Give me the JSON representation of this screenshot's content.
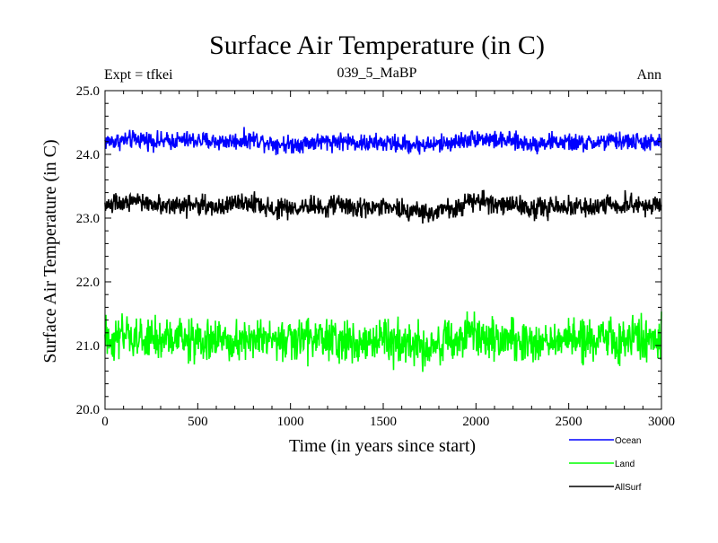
{
  "chart_data": {
    "type": "line",
    "title": "Surface Air Temperature (in C)",
    "subtitle": "039_5_MaBP",
    "left_note": "Expt = tfkei",
    "right_note": "Ann",
    "xlabel": "Time (in years since start)",
    "ylabel": "Surface Air Temperature (in C)",
    "xlim": [
      0,
      3000
    ],
    "ylim": [
      20.0,
      25.0
    ],
    "x_ticks": [
      0,
      500,
      1000,
      1500,
      2000,
      2500,
      3000
    ],
    "x_tick_labels": [
      "0",
      "500",
      "1000",
      "1500",
      "2000",
      "2500",
      "3000"
    ],
    "y_ticks": [
      20.0,
      21.0,
      22.0,
      23.0,
      24.0,
      25.0
    ],
    "y_tick_labels": [
      "20.0",
      "21.0",
      "22.0",
      "23.0",
      "24.0",
      "25.0"
    ],
    "grid": false,
    "legend_position": "bottom-right",
    "series": [
      {
        "name": "Ocean",
        "color": "#0000ff",
        "x": [
          0,
          100,
          200,
          300,
          400,
          500,
          600,
          700,
          800,
          900,
          1000,
          1100,
          1200,
          1300,
          1400,
          1500,
          1600,
          1700,
          1800,
          1900,
          2000,
          2100,
          2200,
          2300,
          2400,
          2500,
          2600,
          2700,
          2800,
          2900,
          3000
        ],
        "values": [
          24.2,
          24.22,
          24.24,
          24.2,
          24.22,
          24.22,
          24.2,
          24.21,
          24.24,
          24.18,
          24.15,
          24.19,
          24.2,
          24.21,
          24.17,
          24.18,
          24.16,
          24.15,
          24.16,
          24.2,
          24.26,
          24.22,
          24.2,
          24.16,
          24.2,
          24.18,
          24.17,
          24.2,
          24.21,
          24.19,
          24.18
        ]
      },
      {
        "name": "Land",
        "color": "#00ff00",
        "x": [
          0,
          100,
          200,
          300,
          400,
          500,
          600,
          700,
          800,
          900,
          1000,
          1100,
          1200,
          1300,
          1400,
          1500,
          1600,
          1700,
          1800,
          1900,
          2000,
          2100,
          2200,
          2300,
          2400,
          2500,
          2600,
          2700,
          2800,
          2900,
          3000
        ],
        "values": [
          21.1,
          21.12,
          21.08,
          21.1,
          21.11,
          21.05,
          21.08,
          21.1,
          21.12,
          21.06,
          21.08,
          21.12,
          21.1,
          21.06,
          21.05,
          21.08,
          21.04,
          21.0,
          21.03,
          21.08,
          21.15,
          21.12,
          21.1,
          21.03,
          21.1,
          21.12,
          21.08,
          21.1,
          21.12,
          21.1,
          21.08
        ]
      },
      {
        "name": "AllSurf",
        "color": "#000000",
        "x": [
          0,
          100,
          200,
          300,
          400,
          500,
          600,
          700,
          800,
          900,
          1000,
          1100,
          1200,
          1300,
          1400,
          1500,
          1600,
          1700,
          1800,
          1900,
          2000,
          2100,
          2200,
          2300,
          2400,
          2500,
          2600,
          2700,
          2800,
          2900,
          3000
        ],
        "values": [
          23.2,
          23.23,
          23.25,
          23.2,
          23.22,
          23.2,
          23.18,
          23.2,
          23.24,
          23.15,
          23.13,
          23.18,
          23.2,
          23.2,
          23.15,
          23.15,
          23.13,
          23.1,
          23.13,
          23.18,
          23.26,
          23.22,
          23.2,
          23.13,
          23.18,
          23.18,
          23.16,
          23.2,
          23.22,
          23.2,
          23.17
        ]
      }
    ],
    "legend_order": [
      "Ocean",
      "Land",
      "AllSurf"
    ]
  }
}
